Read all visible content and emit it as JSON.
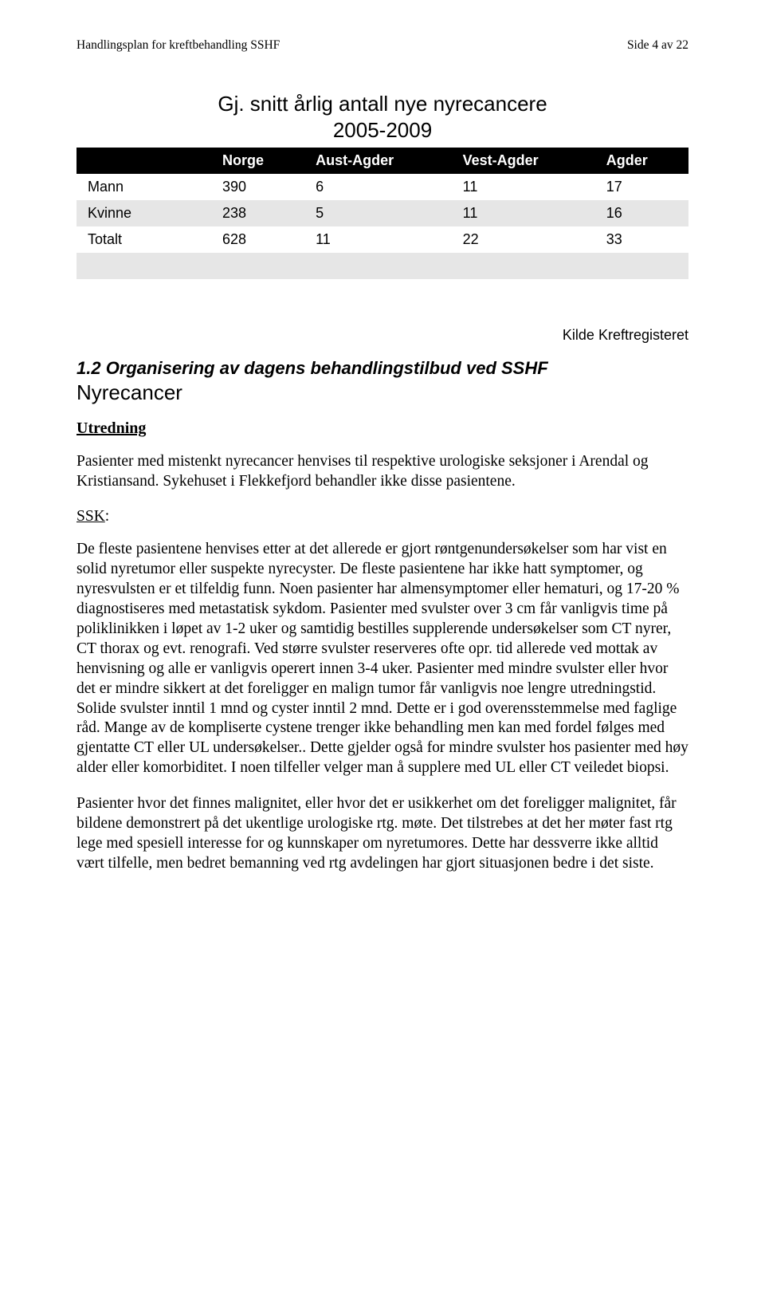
{
  "header": {
    "left": "Handlingsplan for kreftbehandling SSHF",
    "right": "Side 4 av 22"
  },
  "chart": {
    "title_line1": "Gj. snitt årlig antall nye nyrecancere",
    "title_line2": "2005-2009",
    "columns": [
      "",
      "Norge",
      "Aust-Agder",
      "Vest-Agder",
      "Agder"
    ],
    "rows": [
      {
        "label": "Mann",
        "vals": [
          "390",
          "6",
          "11",
          "17"
        ],
        "shade": "light"
      },
      {
        "label": "Kvinne",
        "vals": [
          "238",
          "5",
          "11",
          "16"
        ],
        "shade": "gray"
      },
      {
        "label": "Totalt",
        "vals": [
          "628",
          "11",
          "22",
          "33"
        ],
        "shade": "light"
      },
      {
        "label": "",
        "vals": [
          "",
          "",
          "",
          ""
        ],
        "shade": "gray"
      }
    ],
    "source": "Kilde Kreftregisteret",
    "colors": {
      "header_bg": "#000000",
      "header_fg": "#ffffff",
      "row_light": "#ffffff",
      "row_gray": "#e6e6e6"
    },
    "fonts": {
      "title_pt": 26,
      "cell_pt": 18
    }
  },
  "section": {
    "num_and_title": "1.2 Organisering av dagens behandlingstilbud ved SSHF",
    "subtitle": "Nyrecancer",
    "subheading": "Utredning"
  },
  "paragraphs": {
    "p1": "Pasienter med mistenkt nyrecancer henvises til respektive urologiske seksjoner i Arendal og Kristiansand. Sykehuset i Flekkefjord behandler ikke disse pasientene.",
    "ssk_label": "SSK",
    "p2": "De fleste pasientene henvises etter at det allerede er gjort røntgenundersøkelser som har vist en solid nyretumor eller suspekte nyrecyster. De fleste pasientene har ikke hatt symptomer, og nyresvulsten er et tilfeldig funn. Noen pasienter har almensymptomer eller hematuri, og 17-20 % diagnostiseres med metastatisk sykdom. Pasienter med svulster over 3 cm får vanligvis time på poliklinikken i løpet av 1-2 uker og samtidig bestilles supplerende undersøkelser som CT nyrer, CT thorax og evt. renografi. Ved større svulster reserveres ofte opr. tid allerede ved mottak av henvisning og alle er vanligvis operert innen 3-4 uker. Pasienter med mindre svulster eller hvor det er mindre sikkert at det foreligger en malign tumor får vanligvis noe lengre utredningstid. Solide svulster inntil 1 mnd og cyster inntil 2 mnd. Dette er i god overensstemmelse med faglige råd. Mange av de kompliserte cystene trenger ikke behandling men kan med fordel følges med gjentatte CT eller UL undersøkelser.. Dette gjelder også for mindre svulster hos pasienter med høy alder eller komorbiditet. I noen tilfeller velger man å supplere med UL eller CT veiledet biopsi.",
    "p3": "Pasienter hvor det finnes malignitet, eller hvor det er usikkerhet om det foreligger malignitet, får bildene demonstrert på det ukentlige urologiske rtg. møte. Det tilstrebes at det her møter fast rtg lege med spesiell interesse for og kunnskaper om nyretumores. Dette har dessverre ikke alltid vært tilfelle, men bedret bemanning ved rtg avdelingen har gjort situasjonen bedre i det siste."
  }
}
